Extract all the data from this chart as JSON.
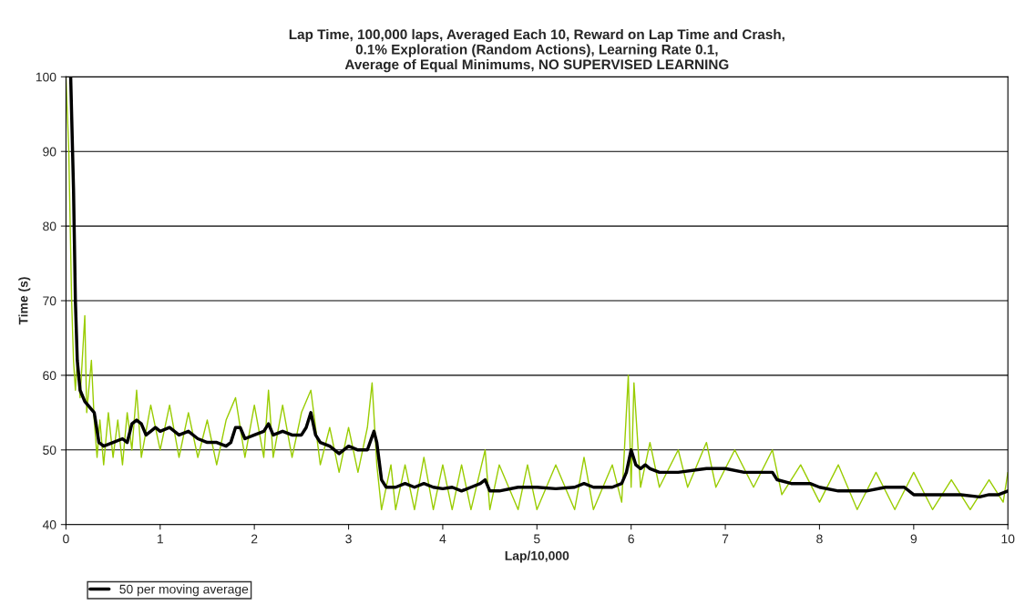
{
  "chart_data": {
    "type": "line",
    "title": "Lap Time, 100,000 laps, Averaged Each 10, Reward on Lap Time and Crash,\n0.1% Exploration (Random Actions), Learning Rate 0.1,\nAverage of Equal Minimums, NO SUPERVISED LEARNING",
    "xlabel": "Lap/10,000",
    "ylabel": "Time (s)",
    "xlim": [
      0,
      10
    ],
    "ylim": [
      40,
      100
    ],
    "xticks": [
      0,
      1,
      2,
      3,
      4,
      5,
      6,
      7,
      8,
      9,
      10
    ],
    "yticks": [
      40,
      50,
      60,
      70,
      80,
      90,
      100
    ],
    "grid": "y",
    "legend": "bottom left",
    "series": [
      {
        "color": "#99cc00",
        "x": [
          0,
          0.03,
          0.06,
          0.08,
          0.1,
          0.12,
          0.15,
          0.2,
          0.22,
          0.27,
          0.3,
          0.33,
          0.36,
          0.4,
          0.45,
          0.5,
          0.55,
          0.6,
          0.65,
          0.7,
          0.75,
          0.8,
          0.9,
          1.0,
          1.1,
          1.2,
          1.3,
          1.4,
          1.5,
          1.6,
          1.7,
          1.8,
          1.9,
          2.0,
          2.1,
          2.15,
          2.2,
          2.3,
          2.4,
          2.5,
          2.6,
          2.7,
          2.8,
          2.9,
          3.0,
          3.1,
          3.2,
          3.25,
          3.3,
          3.35,
          3.45,
          3.5,
          3.6,
          3.7,
          3.8,
          3.9,
          4.0,
          4.1,
          4.2,
          4.3,
          4.45,
          4.5,
          4.6,
          4.8,
          4.9,
          5.0,
          5.2,
          5.4,
          5.5,
          5.6,
          5.8,
          5.9,
          5.97,
          6.0,
          6.03,
          6.1,
          6.2,
          6.3,
          6.5,
          6.6,
          6.8,
          6.9,
          7.1,
          7.3,
          7.5,
          7.6,
          7.8,
          8.0,
          8.2,
          8.4,
          8.6,
          8.8,
          9.0,
          9.2,
          9.4,
          9.6,
          9.8,
          9.95,
          10
        ],
        "values": [
          100,
          90,
          70,
          62,
          58,
          62,
          57,
          68,
          55,
          62,
          54,
          49,
          54,
          48,
          55,
          49,
          54,
          48,
          55,
          50,
          58,
          49,
          56,
          50,
          56,
          49,
          55,
          49,
          54,
          48,
          54,
          57,
          49,
          56,
          49,
          58,
          49,
          56,
          49,
          55,
          58,
          48,
          53,
          47,
          53,
          47,
          53,
          59,
          48,
          42,
          48,
          42,
          48,
          42,
          49,
          42,
          48,
          42,
          48,
          42,
          50,
          42,
          48,
          42,
          48,
          42,
          48,
          42,
          49,
          42,
          48,
          43,
          60,
          45,
          59,
          45,
          51,
          45,
          50,
          45,
          51,
          45,
          50,
          45,
          50,
          44,
          48,
          43,
          48,
          42,
          47,
          42,
          47,
          42,
          46,
          42,
          46,
          43,
          47
        ]
      },
      {
        "name": "50 per moving average",
        "color": "#000000",
        "x": [
          0.05,
          0.08,
          0.1,
          0.12,
          0.15,
          0.2,
          0.3,
          0.35,
          0.4,
          0.5,
          0.6,
          0.65,
          0.7,
          0.75,
          0.8,
          0.85,
          0.9,
          0.95,
          1.0,
          1.1,
          1.2,
          1.3,
          1.4,
          1.5,
          1.6,
          1.7,
          1.75,
          1.8,
          1.85,
          1.9,
          2.0,
          2.1,
          2.15,
          2.2,
          2.3,
          2.4,
          2.5,
          2.55,
          2.6,
          2.65,
          2.7,
          2.8,
          2.9,
          3.0,
          3.1,
          3.2,
          3.27,
          3.3,
          3.35,
          3.4,
          3.5,
          3.6,
          3.7,
          3.8,
          3.9,
          4.0,
          4.1,
          4.2,
          4.3,
          4.4,
          4.45,
          4.5,
          4.6,
          4.8,
          5.0,
          5.2,
          5.4,
          5.5,
          5.6,
          5.8,
          5.9,
          5.95,
          6.0,
          6.05,
          6.1,
          6.15,
          6.2,
          6.3,
          6.5,
          6.8,
          7.0,
          7.2,
          7.5,
          7.55,
          7.7,
          7.9,
          8.0,
          8.2,
          8.5,
          8.7,
          8.9,
          9.0,
          9.2,
          9.5,
          9.7,
          9.8,
          9.9,
          10
        ],
        "values": [
          100,
          85,
          70,
          62,
          58,
          56.5,
          55,
          51,
          50.5,
          51,
          51.5,
          51,
          53.5,
          54,
          53.5,
          52,
          52.5,
          53,
          52.5,
          53,
          52,
          52.5,
          51.5,
          51,
          51,
          50.5,
          51,
          53,
          53,
          51.5,
          52,
          52.5,
          53.5,
          52,
          52.5,
          52,
          52,
          53,
          55,
          52,
          51,
          50.5,
          49.5,
          50.5,
          50,
          50,
          52.5,
          51,
          46,
          45,
          45,
          45.5,
          45,
          45.5,
          45,
          44.8,
          45,
          44.5,
          45,
          45.5,
          46,
          44.5,
          44.5,
          45,
          45,
          44.8,
          45,
          45.5,
          45,
          45,
          45.5,
          47,
          50,
          48,
          47.5,
          48,
          47.5,
          47,
          47,
          47.5,
          47.5,
          47,
          47,
          46,
          45.5,
          45.5,
          45,
          44.5,
          44.5,
          45,
          45,
          44,
          44,
          44,
          43.7,
          44,
          44,
          44.5
        ]
      }
    ]
  }
}
